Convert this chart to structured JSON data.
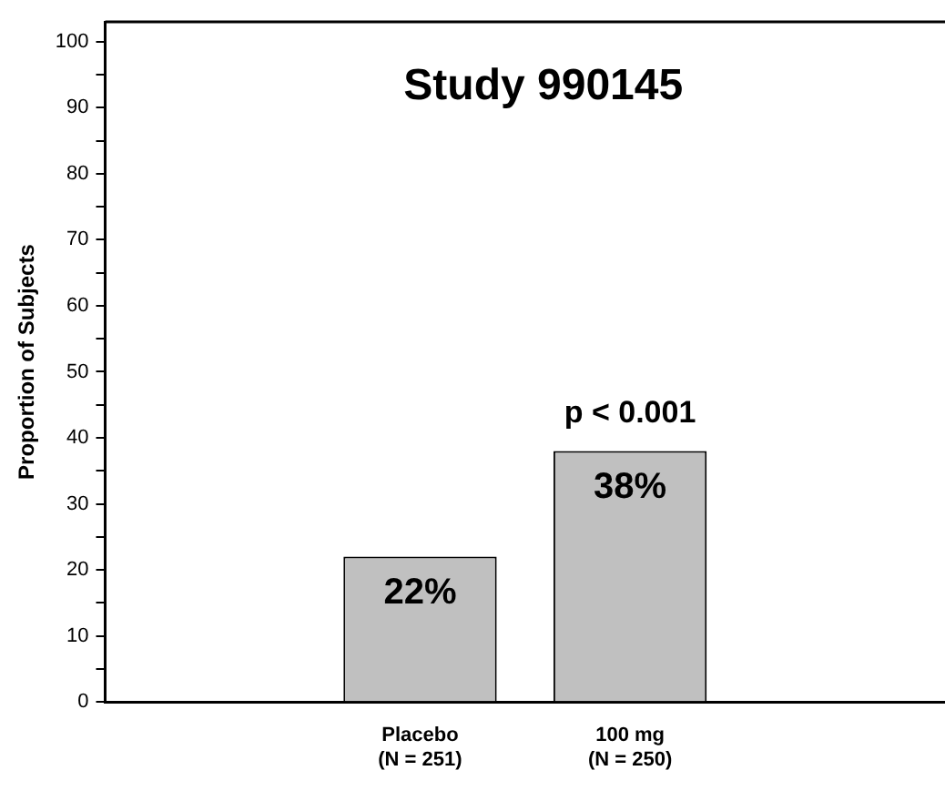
{
  "chart_data": {
    "type": "bar",
    "title": "Study 990145",
    "ylabel": "Proportion of Subjects",
    "categories": [
      null,
      "Placebo\n(N = 251)",
      "100 mg\n(N = 250)",
      null
    ],
    "values": [
      null,
      22,
      38,
      null
    ],
    "value_labels": [
      null,
      "22%",
      "38%",
      null
    ],
    "color": "#c0c0c0",
    "ylim": [
      0,
      103
    ],
    "yticks": [
      0,
      {
        "value": 5,
        "label": null
      },
      10,
      {
        "value": 15,
        "label": null
      },
      20,
      {
        "value": 25,
        "label": null
      },
      30,
      {
        "value": 35,
        "label": null
      },
      40,
      {
        "value": 45,
        "label": null
      },
      50,
      {
        "value": 55,
        "label": null
      },
      60,
      {
        "value": 65,
        "label": null
      },
      70,
      {
        "value": 75,
        "label": null
      },
      80,
      {
        "value": 85,
        "label": null
      },
      90,
      {
        "value": 95,
        "label": null
      },
      100
    ],
    "annotations": [
      {
        "text": "p < 0.001",
        "x": "100 mg\n(N = 250)",
        "y": 38
      }
    ],
    "grid": false,
    "legend": false
  }
}
